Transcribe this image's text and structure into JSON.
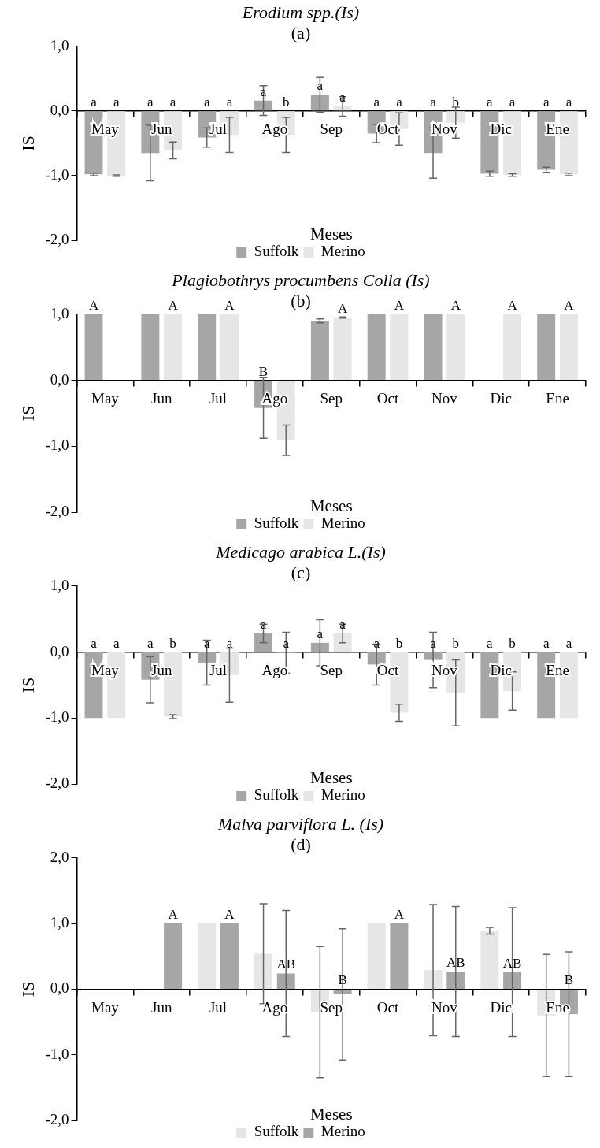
{
  "chart_data": [
    {
      "type": "bar",
      "title": "Erodium spp.(Is)",
      "subtitle": "(a)",
      "xlabel": "Meses",
      "ylabel": "IS",
      "legend": "bottom",
      "grid": false,
      "categories": [
        "May",
        "Jun",
        "Jul",
        "Ago",
        "Sep",
        "Oct",
        "Nov",
        "Dic",
        "Ene"
      ],
      "ylim": [
        -2,
        1
      ],
      "yticks": [
        {
          "value": -2,
          "label": "-2,0"
        },
        {
          "value": -1,
          "label": "-1,0"
        },
        {
          "value": 0,
          "label": "0,0"
        },
        {
          "value": 1,
          "label": "1,0"
        }
      ],
      "series": [
        {
          "name": "Suffolk",
          "color": "#a6a6a6",
          "values": [
            -0.98,
            -0.65,
            -0.41,
            0.16,
            0.25,
            -0.35,
            -0.65,
            -0.97,
            -0.91
          ],
          "errors": [
            0.02,
            0.43,
            0.15,
            0.23,
            0.27,
            0.14,
            0.39,
            0.04,
            0.04
          ],
          "value_labels": [
            "a",
            "a",
            "a",
            "a",
            "a",
            "a",
            "a",
            "a",
            "a"
          ]
        },
        {
          "name": "Merino",
          "color": "#e6e6e6",
          "values": [
            -1.0,
            -0.61,
            -0.37,
            -0.37,
            0.07,
            -0.28,
            -0.18,
            -0.99,
            -0.98
          ],
          "errors": [
            0.01,
            0.13,
            0.27,
            0.27,
            0.15,
            0.25,
            0.24,
            0.02,
            0.02
          ],
          "value_labels": [
            "a",
            "a",
            "a",
            "b",
            "a",
            "a",
            "b",
            "a",
            "a"
          ]
        }
      ]
    },
    {
      "type": "bar",
      "title": "Plagiobothrys procumbens Colla (Is)",
      "subtitle": "(b)",
      "xlabel": "Meses",
      "ylabel": "IS",
      "legend": "bottom",
      "grid": false,
      "categories": [
        "May",
        "Jun",
        "Jul",
        "Ago",
        "Sep",
        "Oct",
        "Nov",
        "Dic",
        "Ene"
      ],
      "ylim": [
        -2,
        1
      ],
      "yticks": [
        {
          "value": -2,
          "label": "-2,0"
        },
        {
          "value": -1,
          "label": "-1,0"
        },
        {
          "value": 0,
          "label": "0,0"
        },
        {
          "value": 1,
          "label": "1,0"
        }
      ],
      "series": [
        {
          "name": "Suffolk",
          "color": "#a6a6a6",
          "values": [
            1,
            1,
            1,
            -0.42,
            0.9,
            1,
            1,
            null,
            1
          ],
          "errors": [
            null,
            null,
            null,
            0.46,
            0.03,
            null,
            null,
            null,
            null
          ],
          "value_labels": [
            "A",
            null,
            null,
            "B",
            null,
            null,
            null,
            null,
            null
          ]
        },
        {
          "name": "Merino",
          "color": "#e6e6e6",
          "values": [
            null,
            1,
            1,
            -0.91,
            0.95,
            1,
            1,
            1,
            1
          ],
          "errors": [
            null,
            null,
            null,
            0.23,
            0.01,
            null,
            null,
            null,
            null
          ],
          "value_labels": [
            null,
            "A",
            "A",
            null,
            "A",
            "A",
            "A",
            "A",
            "A"
          ]
        }
      ]
    },
    {
      "type": "bar",
      "title": "Medicago arabica L.(Is)",
      "subtitle": "(c)",
      "xlabel": "Meses",
      "ylabel": "IS",
      "legend": "bottom",
      "grid": false,
      "categories": [
        "May",
        "Jun",
        "Jul",
        "Ago",
        "Sep",
        "Oct",
        "Nov",
        "Dic",
        "Ene"
      ],
      "ylim": [
        -2,
        1
      ],
      "yticks": [
        {
          "value": -2,
          "label": "-2,0"
        },
        {
          "value": -1,
          "label": "-1,0"
        },
        {
          "value": 0,
          "label": "0,0"
        },
        {
          "value": 1,
          "label": "1,0"
        }
      ],
      "series": [
        {
          "name": "Suffolk",
          "color": "#a6a6a6",
          "values": [
            -1.0,
            -0.42,
            -0.16,
            0.28,
            0.14,
            -0.19,
            -0.12,
            -1.0,
            -1.0
          ],
          "errors": [
            null,
            0.35,
            0.34,
            0.14,
            0.35,
            0.31,
            0.42,
            null,
            null
          ],
          "value_labels": [
            "a",
            "a",
            "a",
            "a",
            "a",
            "a",
            "a",
            "a",
            "a"
          ]
        },
        {
          "name": "Merino",
          "color": "#e6e6e6",
          "values": [
            -1.0,
            -0.98,
            -0.35,
            -0.01,
            0.28,
            -0.92,
            -0.62,
            -0.59,
            -1.0
          ],
          "errors": [
            null,
            0.03,
            0.41,
            0.31,
            0.14,
            0.13,
            0.5,
            0.29,
            null
          ],
          "value_labels": [
            "a",
            "b",
            "a",
            "a",
            "a",
            "b",
            "b",
            "b",
            "a"
          ]
        }
      ]
    },
    {
      "type": "bar",
      "title": "Malva parviflora L. (Is)",
      "subtitle": "(d)",
      "xlabel": "Meses",
      "ylabel": "IS",
      "legend": "bottom",
      "grid": false,
      "categories": [
        "May",
        "Jun",
        "Jul",
        "Ago",
        "Sep",
        "Oct",
        "Nov",
        "Dic",
        "Ene"
      ],
      "ylim": [
        -2,
        2
      ],
      "yticks": [
        {
          "value": -2,
          "label": "-2,0"
        },
        {
          "value": -1,
          "label": "-1,0"
        },
        {
          "value": 0,
          "label": "0,0"
        },
        {
          "value": 1,
          "label": "1,0"
        },
        {
          "value": 2,
          "label": "2,0"
        }
      ],
      "series": [
        {
          "name": "Suffolk",
          "color": "#e6e6e6",
          "values": [
            null,
            null,
            1,
            0.54,
            -0.35,
            1,
            0.29,
            0.89,
            -0.4
          ],
          "errors": [
            null,
            null,
            null,
            0.76,
            1.0,
            null,
            1.0,
            0.05,
            0.93
          ]
        },
        {
          "name": "Merino",
          "color": "#a6a6a6",
          "values": [
            null,
            1,
            1,
            0.24,
            -0.08,
            1,
            0.27,
            0.26,
            -0.38
          ],
          "errors": [
            null,
            null,
            null,
            0.96,
            1.0,
            null,
            0.99,
            0.98,
            0.95
          ],
          "value_labels": [
            null,
            "A",
            "A",
            "AB",
            "B",
            "A",
            "AB",
            "AB",
            "B"
          ]
        }
      ]
    }
  ]
}
